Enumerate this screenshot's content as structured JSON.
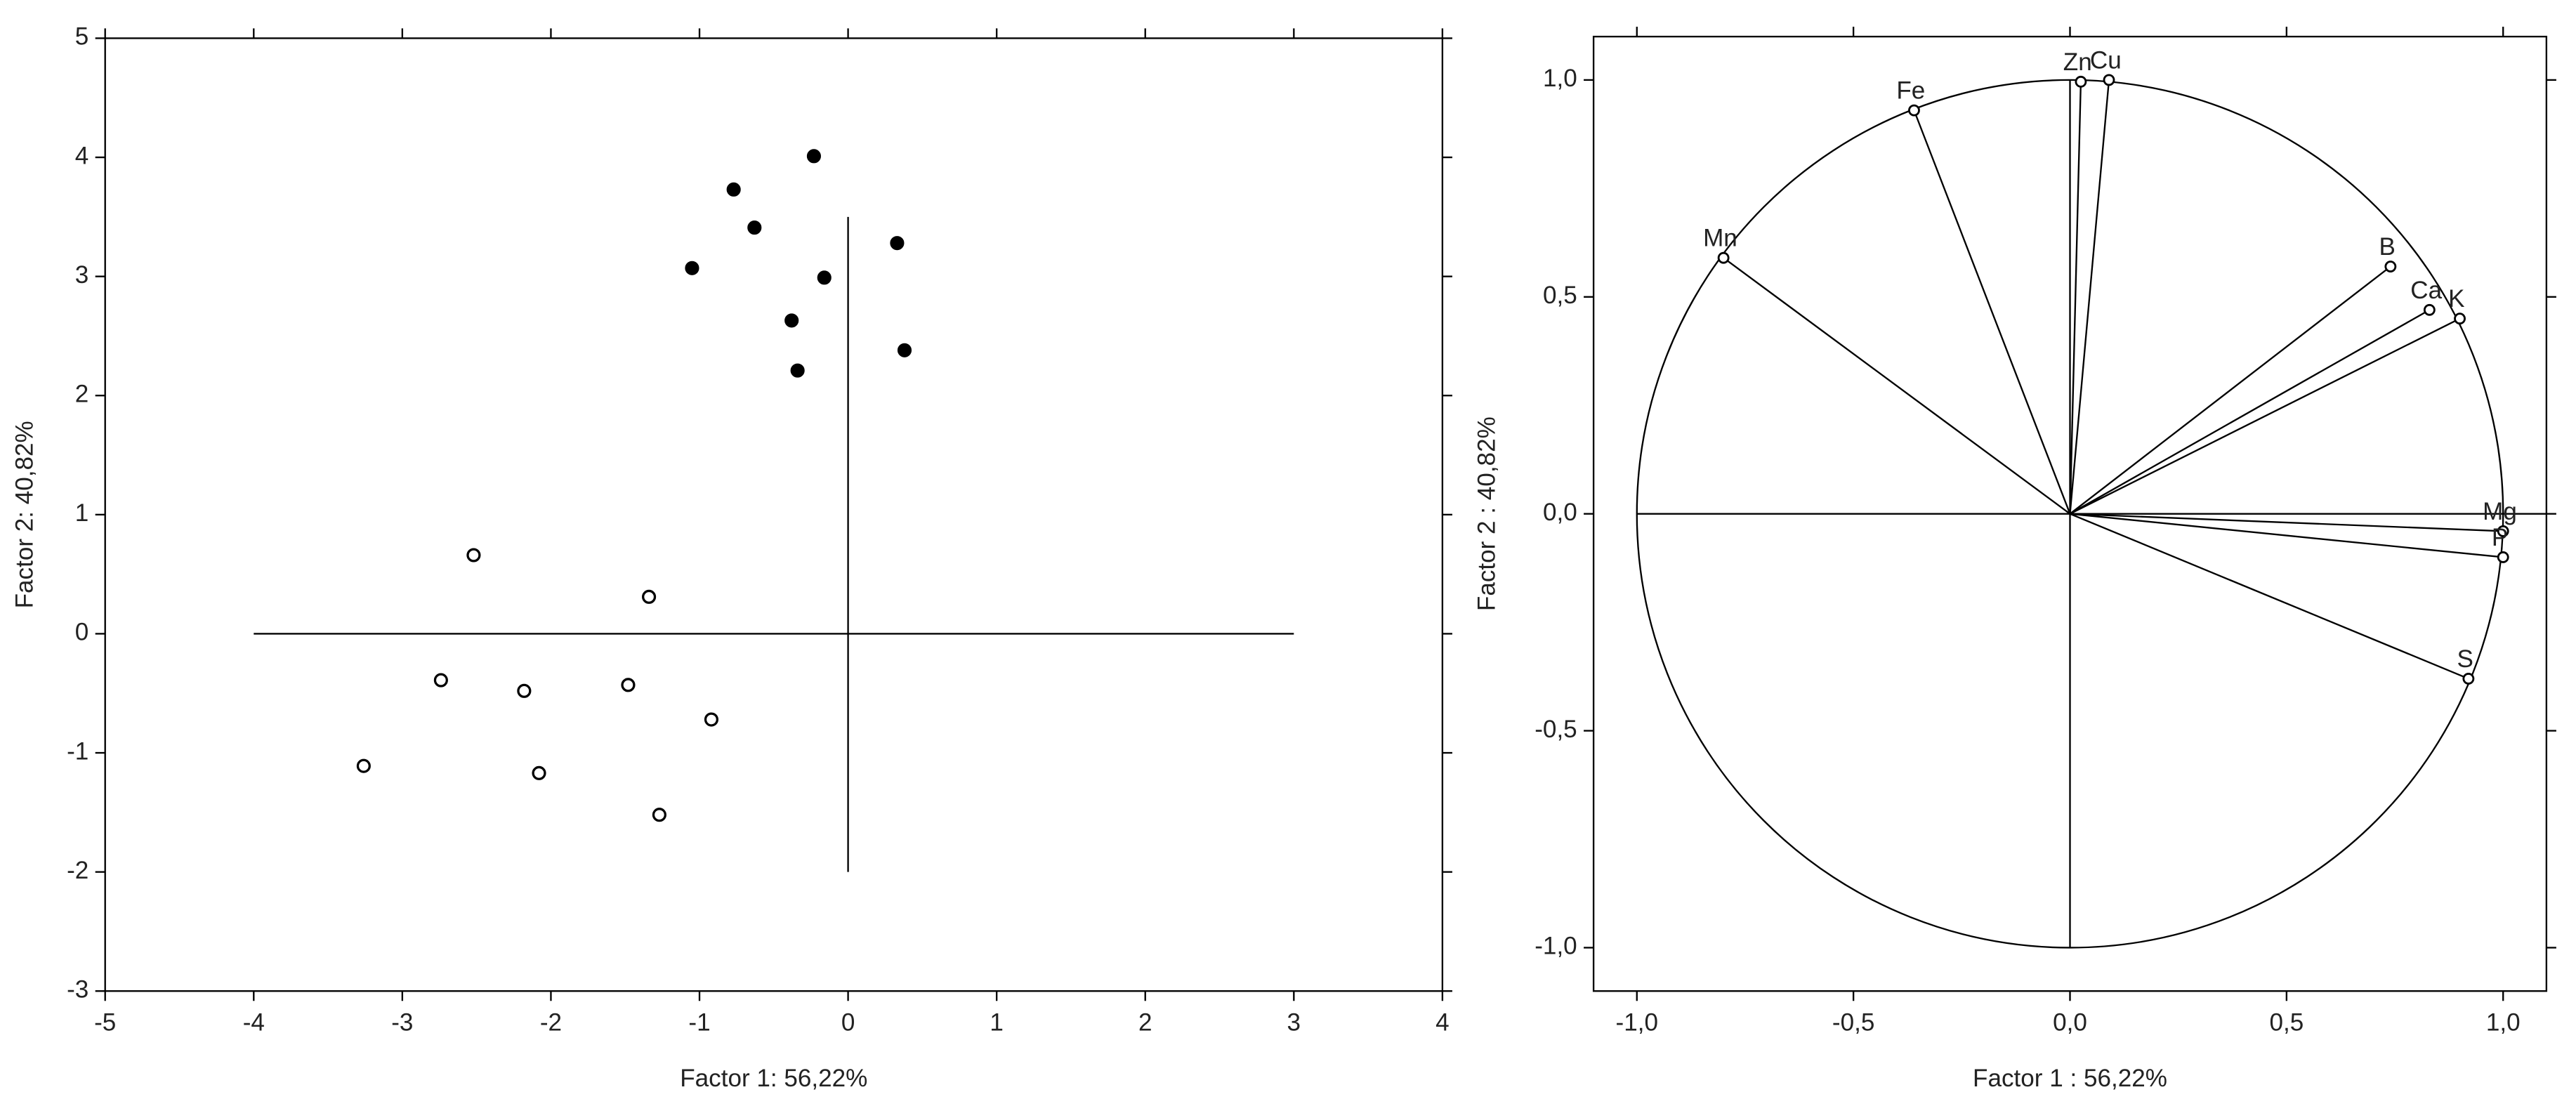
{
  "chart_data": [
    {
      "type": "scatter",
      "x_label": "Factor 1: 56,22%",
      "y_label": "Factor 2: 40,82%",
      "xlim": [
        -5,
        4
      ],
      "ylim": [
        -3,
        5
      ],
      "xticks": [
        -5,
        -4,
        -3,
        -2,
        -1,
        0,
        1,
        2,
        3,
        4
      ],
      "yticks": [
        -3,
        -2,
        -1,
        0,
        1,
        2,
        3,
        4,
        5
      ],
      "reference_lines": {
        "hline": {
          "y": 0,
          "x": [
            -4,
            3
          ]
        },
        "vline": {
          "x": 0,
          "y": [
            -2,
            3.5
          ]
        }
      },
      "series": [
        {
          "marker": "filled",
          "color": "#000000",
          "x": [
            -0.23,
            -0.77,
            -0.63,
            -1.05,
            -0.16,
            0.33,
            -0.38,
            -0.34,
            0.38
          ],
          "values": [
            4.01,
            3.73,
            3.41,
            3.07,
            2.99,
            3.28,
            2.63,
            2.21,
            2.38
          ]
        },
        {
          "marker": "open",
          "color": "#000000",
          "x": [
            -2.52,
            -1.34,
            -2.74,
            -2.18,
            -1.48,
            -0.92,
            -3.26,
            -2.08,
            -1.27
          ],
          "values": [
            0.66,
            0.31,
            -0.39,
            -0.48,
            -0.43,
            -0.72,
            -1.11,
            -1.17,
            -1.52
          ]
        }
      ]
    },
    {
      "type": "loading",
      "x_label": "Factor 1 : 56,22%",
      "y_label": "Factor 2 : 40,82%",
      "xlim": [
        -1.1,
        1.1
      ],
      "ylim": [
        -1.1,
        1.1
      ],
      "xticks": [
        {
          "value": -1,
          "label": "-1,0"
        },
        {
          "value": -0.5,
          "label": "-0,5"
        },
        {
          "value": 0,
          "label": "0,0"
        },
        {
          "value": 0.5,
          "label": "0,5"
        },
        {
          "value": 1,
          "label": "1,0"
        }
      ],
      "yticks": [
        {
          "value": -1,
          "label": "-1,0"
        },
        {
          "value": -0.5,
          "label": "-0,5"
        },
        {
          "value": 0,
          "label": "0,0"
        },
        {
          "value": 0.5,
          "label": "0,5"
        },
        {
          "value": 1,
          "label": "1,0"
        }
      ],
      "circle_radius": 1,
      "reference_lines": {
        "hline": {
          "y": 0,
          "x": [
            -1,
            1.1
          ]
        },
        "vline": {
          "x": 0,
          "y": [
            -1,
            1
          ]
        }
      },
      "series": [
        {
          "color": "#000000",
          "labels": [
            "Zn",
            "Cu",
            "Fe",
            "Mn",
            "B",
            "Ca",
            "K",
            "Mg",
            "P",
            "S"
          ],
          "x": [
            0.025,
            0.09,
            -0.36,
            -0.8,
            0.74,
            0.83,
            0.9,
            1.0,
            1.0,
            0.92
          ],
          "values": [
            0.996,
            1.0,
            0.93,
            0.59,
            0.57,
            0.47,
            0.45,
            -0.04,
            -0.1,
            -0.38
          ]
        }
      ]
    }
  ]
}
